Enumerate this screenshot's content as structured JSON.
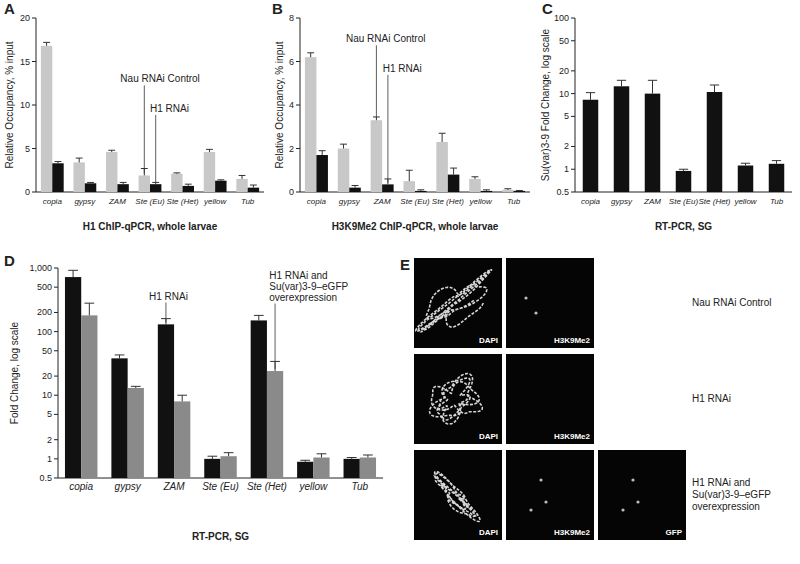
{
  "chart_data": [
    {
      "type": "bar",
      "title": "A",
      "categories": [
        "copia",
        "gypsy",
        "ZAM",
        "Ste (Eu)",
        "Ste (Het)",
        "yellow",
        "Tub"
      ],
      "x_label": "H1 ChIP-qPCR, whole larvae",
      "y_label": "Relative Occupancy, % input",
      "ylim": [
        0,
        20
      ],
      "yticks": [
        0,
        5,
        10,
        15,
        20
      ],
      "series": [
        {
          "name": "Nau RNAi Control",
          "color": "#c8c8c8",
          "values": [
            16.8,
            3.4,
            4.6,
            1.9,
            2.1,
            4.6,
            1.5
          ],
          "errors": [
            0.4,
            0.5,
            0.2,
            0.8,
            0.1,
            0.3,
            0.4
          ]
        },
        {
          "name": "H1 RNAi",
          "color": "#111111",
          "values": [
            3.3,
            1.0,
            0.9,
            0.9,
            0.7,
            1.3,
            0.5
          ],
          "errors": [
            0.2,
            0.1,
            0.2,
            0.2,
            0.2,
            0.1,
            0.3
          ]
        }
      ]
    },
    {
      "type": "bar",
      "title": "B",
      "categories": [
        "copia",
        "gypsy",
        "ZAM",
        "Ste (Eu)",
        "Ste (Het)",
        "yellow",
        "Tub"
      ],
      "x_label": "H3K9Me2 ChIP-qPCR, whole larvae",
      "y_label": "Relative Occupancy, % input",
      "ylim": [
        0,
        8
      ],
      "yticks": [
        0,
        2,
        4,
        6,
        8
      ],
      "series": [
        {
          "name": "Nau RNAi Control",
          "color": "#c8c8c8",
          "values": [
            6.2,
            2.0,
            3.3,
            0.5,
            2.3,
            0.6,
            0.1
          ],
          "errors": [
            0.2,
            0.2,
            0.15,
            0.5,
            0.4,
            0.1,
            0.05
          ]
        },
        {
          "name": "H1 RNAi",
          "color": "#111111",
          "values": [
            1.7,
            0.2,
            0.35,
            0.05,
            0.8,
            0.05,
            0.05
          ],
          "errors": [
            0.2,
            0.1,
            0.25,
            0.05,
            0.3,
            0.05,
            0.02
          ]
        }
      ]
    },
    {
      "type": "bar",
      "title": "C",
      "categories": [
        "copia",
        "gypsy",
        "ZAM",
        "Ste (Eu)",
        "Ste (Het)",
        "yellow",
        "Tub"
      ],
      "x_label": "RT-PCR, SG",
      "y_label": "Su(var)3-9 Fold Change, log scale",
      "log": "y",
      "ylim": [
        0.5,
        100
      ],
      "yticks": [
        0.5,
        1,
        2,
        5,
        10,
        20,
        50,
        100
      ],
      "color": "#111111",
      "values": [
        8.3,
        12.5,
        10,
        0.95,
        10.5,
        1.12,
        1.18
      ],
      "errors": [
        2,
        2.5,
        5,
        0.05,
        2.5,
        0.08,
        0.12
      ]
    },
    {
      "type": "bar",
      "title": "D",
      "categories": [
        "copia",
        "gypsy",
        "ZAM",
        "Ste (Eu)",
        "Ste (Het)",
        "yellow",
        "Tub"
      ],
      "x_label": "RT-PCR, SG",
      "y_label": "Fold Change, log scale",
      "log": "y",
      "ylim": [
        0.5,
        1000
      ],
      "yticks": [
        0.5,
        1,
        2,
        5,
        10,
        20,
        50,
        100,
        200,
        500,
        {
          "value": 1000,
          "label": "1,000"
        }
      ],
      "series": [
        {
          "name": "H1 RNAi",
          "color": "#111111",
          "values": [
            720,
            38,
            130,
            1.0,
            150,
            0.9,
            1.0
          ],
          "errors": [
            200,
            5,
            30,
            0.1,
            30,
            0.05,
            0.05
          ]
        },
        {
          "name": "H1 RNAi and Su(var)3-9–eGFP overexpression",
          "color": "#8a8a8a",
          "values": [
            180,
            13,
            8,
            1.1,
            24,
            1.05,
            1.05
          ],
          "errors": [
            100,
            0.8,
            2,
            0.15,
            10,
            0.15,
            0.1
          ]
        }
      ]
    }
  ],
  "image_panel": {
    "title": "E",
    "rows": [
      {
        "label": "Nau RNAi Control",
        "channels": [
          "DAPI",
          "H3K9Me2"
        ]
      },
      {
        "label": "H1 RNAi",
        "channels": [
          "DAPI",
          "H3K9Me2"
        ]
      },
      {
        "label": "H1 RNAi and Su(var)3-9–eGFP overexpression",
        "channels": [
          "DAPI",
          "H3K9Me2",
          "GFP"
        ]
      }
    ]
  }
}
